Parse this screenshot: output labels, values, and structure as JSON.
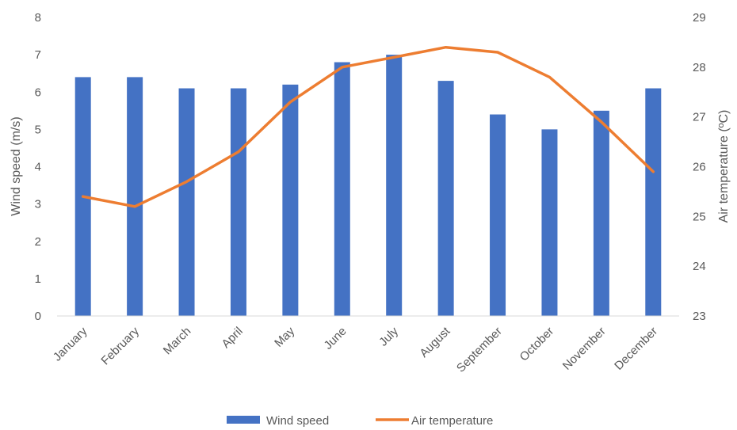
{
  "chart_data": {
    "type": "bar+line",
    "categories": [
      "January",
      "February",
      "March",
      "April",
      "May",
      "June",
      "July",
      "August",
      "September",
      "October",
      "November",
      "December"
    ],
    "series": [
      {
        "name": "Wind speed",
        "type": "bar",
        "axis": "left",
        "color": "#4472C4",
        "values": [
          6.4,
          6.4,
          6.1,
          6.1,
          6.2,
          6.8,
          7.0,
          6.3,
          5.4,
          5.0,
          5.5,
          6.1
        ]
      },
      {
        "name": "Air temperature",
        "type": "line",
        "axis": "right",
        "color": "#ED7D31",
        "values": [
          25.4,
          25.2,
          25.7,
          26.3,
          27.3,
          28.0,
          28.2,
          28.4,
          28.3,
          27.8,
          26.9,
          25.9
        ]
      }
    ],
    "y_left": {
      "label": "Wind speed (m/s)",
      "ylim": [
        0,
        8
      ],
      "ticks": [
        "0",
        "1",
        "2",
        "3",
        "4",
        "5",
        "6",
        "7",
        "8"
      ]
    },
    "y_right": {
      "label": "Air temperature (ºC)",
      "ylim": [
        23,
        29
      ],
      "ticks": [
        "23",
        "24",
        "25",
        "26",
        "27",
        "28",
        "29"
      ]
    },
    "grid": false,
    "legend_position": "bottom"
  }
}
